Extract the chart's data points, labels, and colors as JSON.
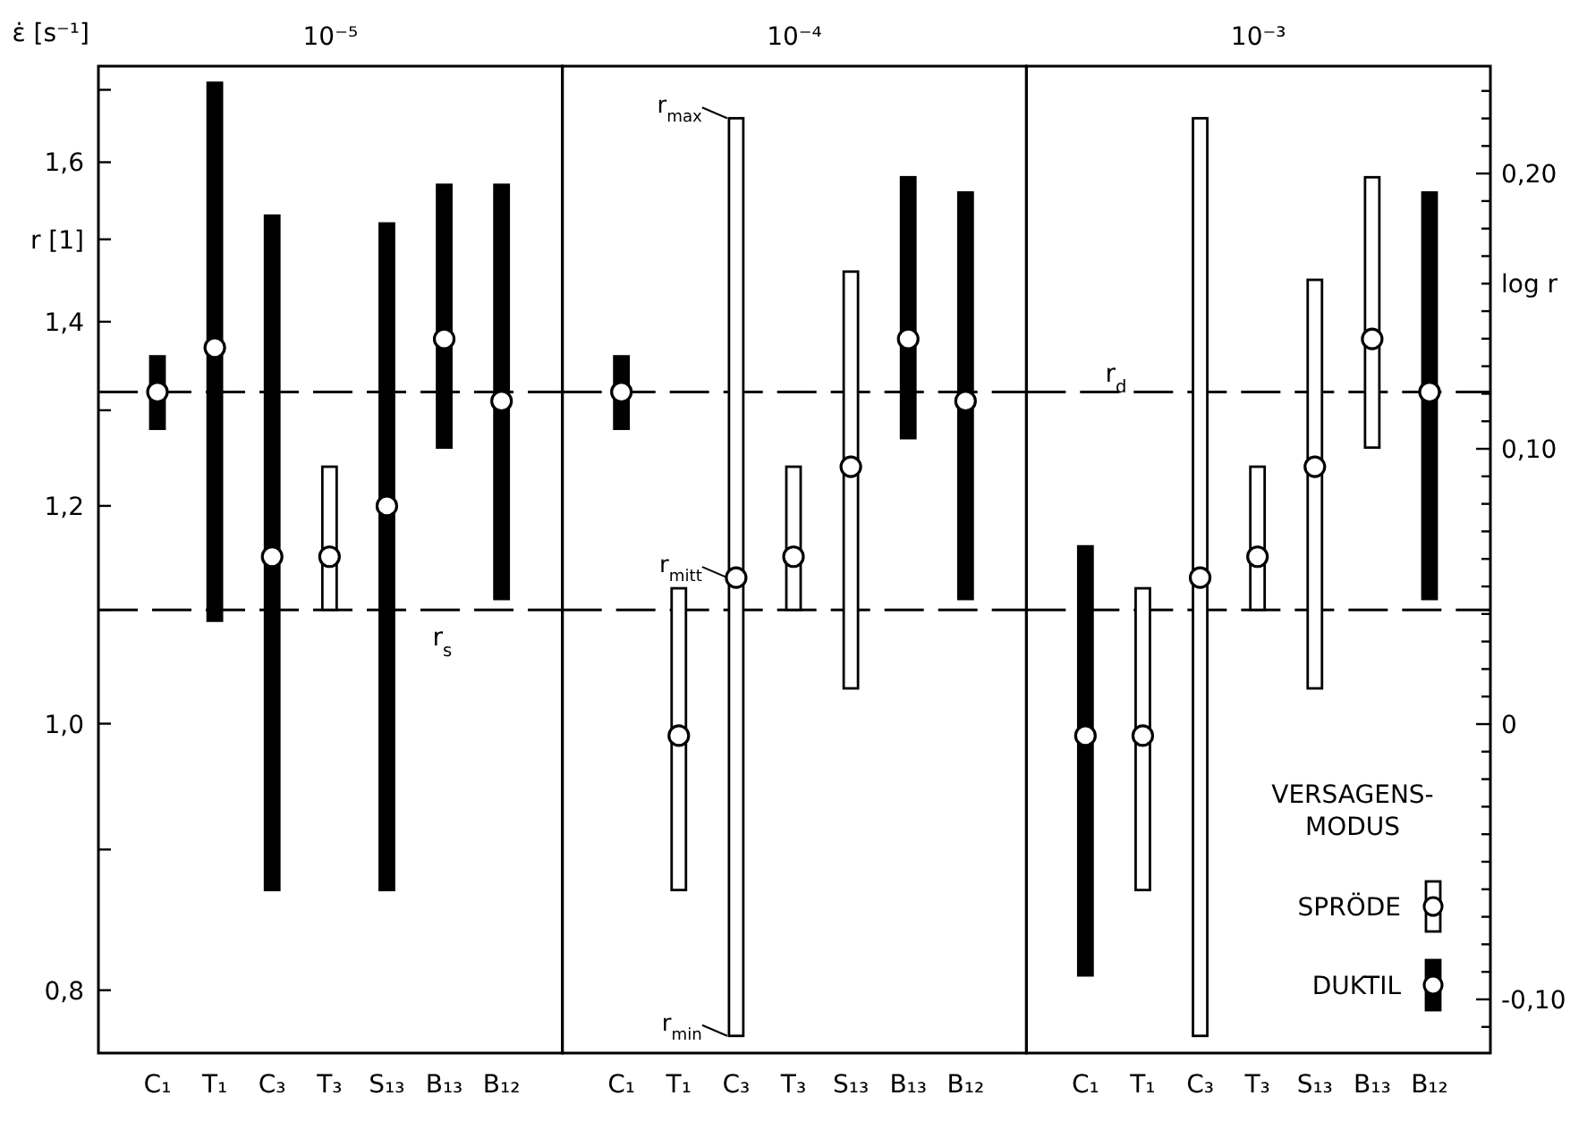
{
  "chart_data": [
    {
      "type": "bar",
      "title": "10⁻⁵",
      "ylabel": "r [1]",
      "annotations": [
        "ε̇ [s⁻¹]"
      ],
      "categories": [
        "C₁",
        "T₁",
        "C₃",
        "T₃",
        "S₁₃",
        "B₁₃",
        "B₁₂"
      ],
      "log": "y",
      "ylim": [
        0.759,
        1.734
      ],
      "yticks": [
        {
          "value": 0.8,
          "label": "0,8"
        },
        {
          "value": 0.9,
          "label": null
        },
        {
          "value": 1.0,
          "label": "1,0"
        },
        {
          "value": 1.1,
          "label": null
        },
        {
          "value": 1.2,
          "label": "1,2"
        },
        {
          "value": 1.3,
          "label": null
        },
        {
          "value": 1.4,
          "label": "1,4"
        },
        {
          "value": 1.5,
          "label": null
        },
        {
          "value": 1.6,
          "label": "1,6"
        },
        {
          "value": 1.7,
          "label": null
        }
      ],
      "grid": false,
      "legend": false,
      "ref_lines": [
        {
          "axis": "y",
          "value": 1.32,
          "label": null,
          "line_style": "dashed"
        },
        {
          "axis": "y",
          "value": 1.1,
          "label": "r$_{s}$",
          "line_style": "dashed"
        }
      ],
      "series": [
        {
          "type": "bar",
          "color": "#ffffff",
          "base": [
            null,
            null,
            null,
            1.1,
            null,
            null,
            null
          ],
          "values": [
            null,
            null,
            null,
            0.14,
            null,
            null,
            null
          ]
        },
        {
          "type": "bar",
          "color": "#000000",
          "base": [
            1.28,
            1.09,
            0.87,
            null,
            0.87,
            1.26,
            1.11
          ],
          "values": [
            0.08,
            0.62,
            0.66,
            null,
            0.65,
            0.31,
            0.46
          ]
        },
        {
          "type": "scatter",
          "color": "#ffffff",
          "marker": "circle",
          "x": [
            "C₁",
            "T₁",
            "C₃",
            "T₃",
            "S₁₃",
            "B₁₃",
            "B₁₂"
          ],
          "values": [
            1.32,
            1.37,
            1.15,
            1.15,
            1.2,
            1.38,
            1.31
          ]
        }
      ]
    },
    {
      "type": "bar",
      "title": "10⁻⁴",
      "categories": [
        "C₁",
        "T₁",
        "C₃",
        "T₃",
        "S₁₃",
        "B₁₃",
        "B₁₂"
      ],
      "log": "y",
      "ylim": [
        0.759,
        1.734
      ],
      "tick_labels": "x",
      "grid": false,
      "legend": false,
      "ref_lines": [
        {
          "axis": "y",
          "value": 1.32,
          "label": null,
          "line_style": "dashed"
        },
        {
          "axis": "y",
          "value": 1.1,
          "label": null,
          "line_style": "dashed"
        }
      ],
      "annotations": [
        {
          "text": "r$_{max}$",
          "x": "C₃",
          "y": 1.66
        },
        {
          "text": "r$_{mitt}$",
          "x": "C₃",
          "y": 1.13
        },
        {
          "text": "r$_{min}$",
          "x": "C₃",
          "y": 0.77
        }
      ],
      "series": [
        {
          "type": "bar",
          "color": "#ffffff",
          "base": [
            null,
            0.87,
            0.77,
            1.1,
            1.03,
            null,
            null
          ],
          "values": [
            null,
            0.25,
            0.89,
            0.14,
            0.43,
            null,
            null
          ]
        },
        {
          "type": "bar",
          "color": "#000000",
          "base": [
            1.28,
            null,
            null,
            null,
            null,
            1.27,
            1.11
          ],
          "values": [
            0.08,
            null,
            null,
            null,
            null,
            0.31,
            0.45
          ]
        },
        {
          "type": "scatter",
          "color": "#ffffff",
          "marker": "circle",
          "x": [
            "C₁",
            "T₁",
            "C₃",
            "T₃",
            "S₁₃",
            "B₁₃",
            "B₁₂"
          ],
          "values": [
            1.32,
            0.99,
            1.13,
            1.15,
            1.24,
            1.38,
            1.31
          ]
        }
      ]
    },
    {
      "type": "bar",
      "title": "10⁻³",
      "y2label": "log r",
      "categories": [
        "C₁",
        "T₁",
        "C₃",
        "T₃",
        "S₁₃",
        "B₁₃",
        "B₁₂"
      ],
      "log": "y",
      "ylim": [
        0.759,
        1.734
      ],
      "y2lim": [
        -0.1195,
        0.239
      ],
      "y2ticks": [
        {
          "value": -0.11,
          "label": null
        },
        {
          "value": -0.1,
          "label": "-0,10"
        },
        {
          "value": -0.09,
          "label": null
        },
        {
          "value": -0.08,
          "label": null
        },
        {
          "value": -0.07,
          "label": null
        },
        {
          "value": -0.06,
          "label": null
        },
        {
          "value": -0.05,
          "label": null
        },
        {
          "value": -0.04,
          "label": null
        },
        {
          "value": -0.03,
          "label": null
        },
        {
          "value": -0.02,
          "label": null
        },
        {
          "value": -0.01,
          "label": null
        },
        {
          "value": 0,
          "label": "0"
        },
        {
          "value": 0.01,
          "label": null
        },
        {
          "value": 0.02,
          "label": null
        },
        {
          "value": 0.03,
          "label": null
        },
        {
          "value": 0.04,
          "label": null
        },
        {
          "value": 0.05,
          "label": null
        },
        {
          "value": 0.06,
          "label": null
        },
        {
          "value": 0.07,
          "label": null
        },
        {
          "value": 0.08,
          "label": null
        },
        {
          "value": 0.09,
          "label": null
        },
        {
          "value": 0.1,
          "label": "0,10"
        },
        {
          "value": 0.11,
          "label": null
        },
        {
          "value": 0.12,
          "label": null
        },
        {
          "value": 0.13,
          "label": null
        },
        {
          "value": 0.14,
          "label": null
        },
        {
          "value": 0.15,
          "label": null
        },
        {
          "value": 0.16,
          "label": null
        },
        {
          "value": 0.17,
          "label": null
        },
        {
          "value": 0.18,
          "label": null
        },
        {
          "value": 0.19,
          "label": null
        },
        {
          "value": 0.2,
          "label": "0,20"
        },
        {
          "value": 0.21,
          "label": null
        },
        {
          "value": 0.22,
          "label": null
        },
        {
          "value": 0.23,
          "label": null
        }
      ],
      "grid": false,
      "legend": "bottom right",
      "legend_title": "VERSAGENS-MODUS",
      "ref_lines": [
        {
          "axis": "y",
          "value": 1.32,
          "label": "r$_{d}$",
          "line_style": "dashed"
        },
        {
          "axis": "y",
          "value": 1.1,
          "label": null,
          "line_style": "dashed"
        }
      ],
      "series": [
        {
          "name": "SPRÖDE",
          "type": "bar",
          "color": "#ffffff",
          "base": [
            null,
            0.87,
            0.77,
            1.1,
            1.03,
            1.26,
            null
          ],
          "values": [
            null,
            0.25,
            0.89,
            0.14,
            0.42,
            0.32,
            null
          ]
        },
        {
          "name": "DUKTIL",
          "type": "bar",
          "color": "#000000",
          "base": [
            0.81,
            null,
            null,
            null,
            null,
            null,
            1.11
          ],
          "values": [
            0.35,
            null,
            null,
            null,
            null,
            null,
            0.45
          ]
        },
        {
          "type": "scatter",
          "color": "#ffffff",
          "marker": "circle",
          "x": [
            "C₁",
            "T₁",
            "C₃",
            "T₃",
            "S₁₃",
            "B₁₃",
            "B₁₂"
          ],
          "values": [
            0.99,
            0.99,
            1.13,
            1.15,
            1.24,
            1.38,
            1.32
          ]
        }
      ]
    }
  ]
}
